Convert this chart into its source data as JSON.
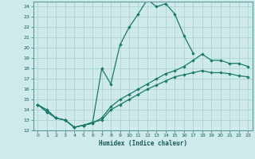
{
  "xlabel": "Humidex (Indice chaleur)",
  "xlim": [
    -0.5,
    23.5
  ],
  "ylim": [
    12,
    24.5
  ],
  "yticks": [
    12,
    13,
    14,
    15,
    16,
    17,
    18,
    19,
    20,
    21,
    22,
    23,
    24
  ],
  "xticks": [
    0,
    1,
    2,
    3,
    4,
    5,
    6,
    7,
    8,
    9,
    10,
    11,
    12,
    13,
    14,
    15,
    16,
    17,
    18,
    19,
    20,
    21,
    22,
    23
  ],
  "bg_color": "#ceeaea",
  "line_color": "#1a7a6a",
  "grid_color": "#aacece",
  "curve1_x": [
    0,
    1,
    2,
    3,
    4,
    5,
    6,
    7,
    8,
    9,
    10,
    11,
    12,
    13,
    14,
    15,
    16,
    17
  ],
  "curve1_y": [
    14.5,
    14.0,
    13.2,
    13.0,
    12.3,
    12.5,
    12.7,
    18.0,
    16.5,
    20.3,
    22.0,
    23.3,
    24.7,
    24.0,
    24.3,
    23.3,
    21.2,
    19.5
  ],
  "curve2_x": [
    0,
    1,
    2,
    3,
    4,
    5,
    6,
    7,
    8,
    9,
    10,
    11,
    12,
    13,
    14,
    15,
    16,
    17,
    18,
    19,
    20,
    21,
    22,
    23
  ],
  "curve2_y": [
    14.5,
    13.8,
    13.2,
    13.0,
    12.3,
    12.5,
    12.7,
    13.2,
    14.3,
    15.0,
    15.5,
    16.0,
    16.5,
    17.0,
    17.5,
    17.8,
    18.2,
    18.8,
    19.4,
    18.8,
    18.8,
    18.5,
    18.5,
    18.2
  ],
  "curve3_x": [
    0,
    1,
    2,
    3,
    4,
    5,
    6,
    7,
    8,
    9,
    10,
    11,
    12,
    13,
    14,
    15,
    16,
    17,
    18,
    19,
    20,
    21,
    22,
    23
  ],
  "curve3_y": [
    14.5,
    13.8,
    13.2,
    13.0,
    12.3,
    12.5,
    12.8,
    13.0,
    14.0,
    14.5,
    15.0,
    15.5,
    16.0,
    16.4,
    16.8,
    17.2,
    17.4,
    17.6,
    17.8,
    17.6,
    17.6,
    17.5,
    17.3,
    17.2
  ]
}
